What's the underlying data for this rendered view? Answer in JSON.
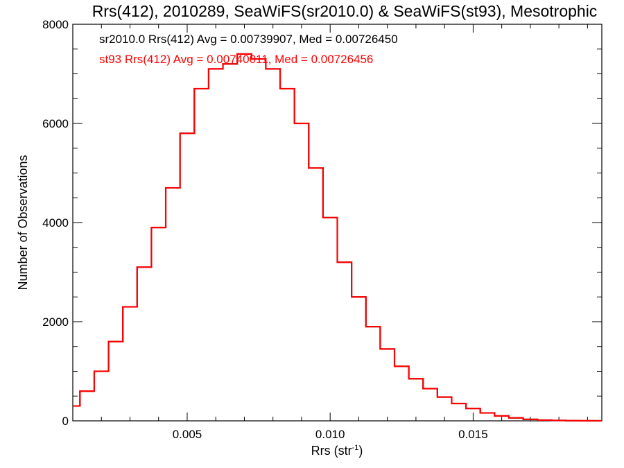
{
  "chart_data": {
    "type": "line",
    "title": "Rrs(412), 2010289, SeaWiFS(sr2010.0) & SeaWiFS(st93), Mesotrophic",
    "xlabel": "Rrs (str",
    "xlabel_sup": "-1",
    "xlabel_close": ")",
    "ylabel": "Number of Observations",
    "xlim": [
      0.001,
      0.0195
    ],
    "ylim": [
      0,
      8000
    ],
    "x_ticks": [
      0.005,
      0.01,
      0.015
    ],
    "x_tick_labels": [
      "0.005",
      "0.010",
      "0.015"
    ],
    "y_ticks": [
      0,
      2000,
      4000,
      6000,
      8000
    ],
    "y_tick_labels": [
      "0",
      "2000",
      "4000",
      "6000",
      "8000"
    ],
    "annotations": [
      {
        "text": "sr2010.0 Rrs(412) Avg = 0.00739907, Med = 0.00726450",
        "color": "#000000"
      },
      {
        "text": "st93 Rrs(412) Avg = 0.00740011, Med = 0.00726456",
        "color": "#ff0000"
      }
    ],
    "series": [
      {
        "style": "histogram-step",
        "color": "#000000",
        "x": [
          0.001,
          0.0015,
          0.002,
          0.0025,
          0.003,
          0.0035,
          0.004,
          0.0045,
          0.005,
          0.0055,
          0.006,
          0.0065,
          0.007,
          0.0075,
          0.008,
          0.0085,
          0.009,
          0.0095,
          0.01,
          0.0105,
          0.011,
          0.0115,
          0.012,
          0.0125,
          0.013,
          0.0135,
          0.014,
          0.0145,
          0.015,
          0.0155,
          0.016,
          0.0165,
          0.017,
          0.0175,
          0.018,
          0.0185,
          0.019,
          0.0195
        ],
        "values": [
          300,
          600,
          1000,
          1600,
          2300,
          3100,
          3900,
          4700,
          5800,
          6700,
          7100,
          7200,
          7400,
          7300,
          7100,
          6700,
          6000,
          5100,
          4100,
          3200,
          2500,
          1900,
          1450,
          1100,
          850,
          650,
          480,
          350,
          250,
          160,
          100,
          60,
          30,
          15,
          8,
          4,
          2,
          1
        ]
      },
      {
        "style": "histogram-step",
        "color": "#ff0000",
        "x": [
          0.001,
          0.0015,
          0.002,
          0.0025,
          0.003,
          0.0035,
          0.004,
          0.0045,
          0.005,
          0.0055,
          0.006,
          0.0065,
          0.007,
          0.0075,
          0.008,
          0.0085,
          0.009,
          0.0095,
          0.01,
          0.0105,
          0.011,
          0.0115,
          0.012,
          0.0125,
          0.013,
          0.0135,
          0.014,
          0.0145,
          0.015,
          0.0155,
          0.016,
          0.0165,
          0.017,
          0.0175,
          0.018,
          0.0185,
          0.019,
          0.0195
        ],
        "values": [
          300,
          600,
          1000,
          1600,
          2300,
          3100,
          3900,
          4700,
          5800,
          6700,
          7100,
          7200,
          7400,
          7300,
          7100,
          6700,
          6000,
          5100,
          4100,
          3200,
          2500,
          1900,
          1450,
          1100,
          850,
          650,
          480,
          350,
          250,
          160,
          100,
          60,
          30,
          15,
          8,
          4,
          2,
          1
        ]
      }
    ]
  }
}
